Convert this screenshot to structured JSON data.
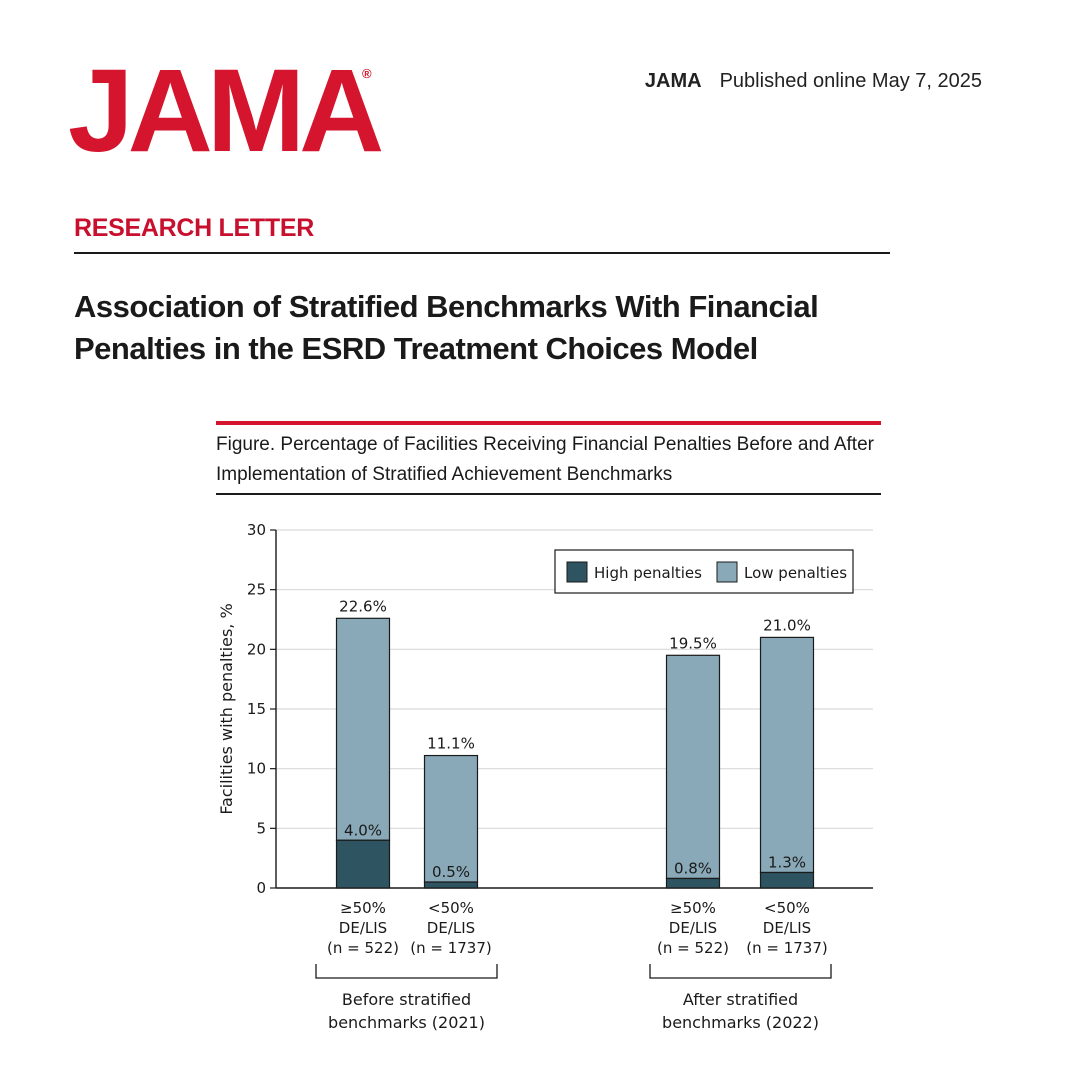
{
  "header": {
    "logo": "JAMA",
    "registered": "®",
    "journal": "JAMA",
    "published": "Published online May  7, 2025"
  },
  "article": {
    "section": "RESEARCH LETTER",
    "title": "Association of Stratified Benchmarks With Financial Penalties in the ESRD Treatment Choices Model"
  },
  "figure": {
    "caption": "Figure. Percentage of Facilities Receiving Financial Penalties Before and After Implementation of Stratified Achievement Benchmarks"
  },
  "chart_data": {
    "type": "bar",
    "stacked": true,
    "ylabel": "Facilities with penalties, %",
    "ylim": [
      0,
      30
    ],
    "yticks": [
      0,
      5,
      10,
      15,
      20,
      25,
      30
    ],
    "grid": true,
    "legend_position": "top-right",
    "categories": [
      [
        "≥50%",
        "DE/LIS",
        "(n = 522)"
      ],
      [
        "<50%",
        "DE/LIS",
        "(n = 1737)"
      ],
      [
        "≥50%",
        "DE/LIS",
        "(n = 522)"
      ],
      [
        "<50%",
        "DE/LIS",
        "(n = 1737)"
      ]
    ],
    "groups": [
      {
        "label": [
          "Before stratified",
          "benchmarks (2021)"
        ],
        "categories": [
          0,
          1
        ]
      },
      {
        "label": [
          "After stratified",
          "benchmarks (2022)"
        ],
        "categories": [
          2,
          3
        ]
      }
    ],
    "series": [
      {
        "name": "High penalties",
        "color": "#2e5361",
        "values": [
          4.0,
          0.5,
          0.8,
          1.3
        ],
        "labels": [
          "4.0%",
          "0.5%",
          "0.8%",
          "1.3%"
        ]
      },
      {
        "name": "Low penalties",
        "color": "#8aa9b8",
        "values": [
          18.6,
          10.6,
          18.7,
          19.7
        ]
      }
    ],
    "totals": [
      22.6,
      11.1,
      19.5,
      21.0
    ],
    "total_labels": [
      "22.6%",
      "11.1%",
      "19.5%",
      "21.0%"
    ]
  }
}
